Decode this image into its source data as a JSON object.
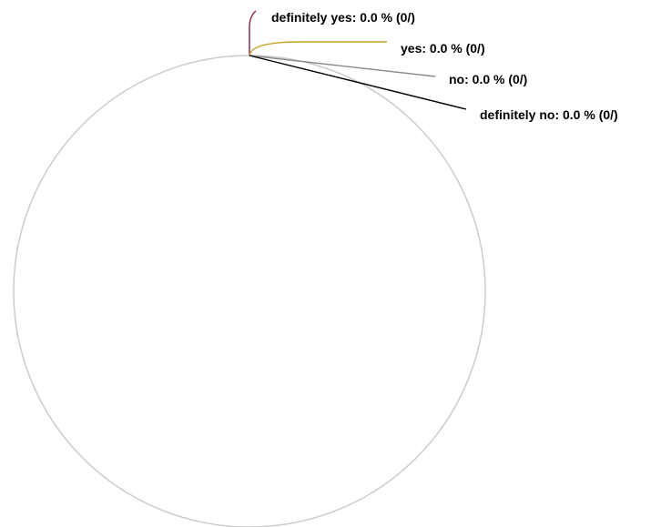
{
  "chart_data": {
    "type": "pie",
    "categories": [
      "definitely yes",
      "yes",
      "no",
      "definitely no"
    ],
    "values": [
      0.0,
      0.0,
      0.0,
      0.0
    ],
    "labels": [
      "definitely yes: 0.0 % (0/)",
      "yes: 0.0 % (0/)",
      "no: 0.0 % (0/)",
      "definitely no: 0.0 % (0/)"
    ],
    "colors": [
      "#8b1a4a",
      "#c9a227",
      "#8a8a8a",
      "#000000"
    ],
    "circle_color": "#cccccc",
    "legend": "none"
  }
}
